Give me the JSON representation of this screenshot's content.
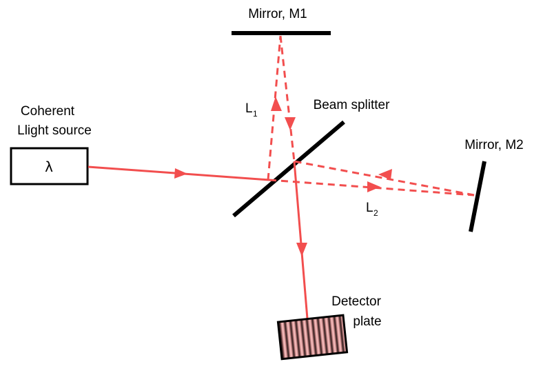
{
  "labels": {
    "mirror_m1": "Mirror, M1",
    "mirror_m2": "Mirror, M2",
    "beam_splitter": "Beam splitter",
    "source_line1": "Coherent",
    "source_line2": "Llight source",
    "wavelength_symbol": "λ",
    "path1_letter": "L",
    "path1_sub": "1",
    "path2_letter": "L",
    "path2_sub": "2",
    "detector_line1": "Detector",
    "detector_line2": "plate"
  },
  "colors": {
    "beam": "#f24e4e",
    "optics": "#000000",
    "fringe_dark": "#2a1616",
    "fringe_light": "#e9a3a3"
  }
}
